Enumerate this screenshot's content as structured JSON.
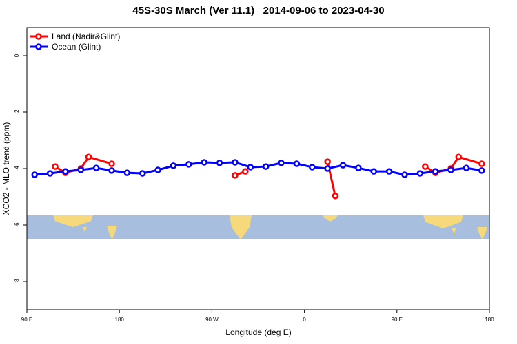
{
  "chart_data": {
    "type": "line",
    "title": "45S-30S March (Ver 11.1)   2014-09-06 to 2023-04-30",
    "x_label": "Longitude (deg E)",
    "y_label": "XCO2 - MLO trend (ppm)",
    "xlim": [
      90,
      540
    ],
    "ylim": [
      -9,
      1
    ],
    "xticks": [
      {
        "value": 90,
        "label": "90 E"
      },
      180,
      {
        "value": 270,
        "label": "90 W"
      },
      {
        "value": 360,
        "label": "0"
      },
      {
        "value": 450,
        "label": "90 E"
      },
      {
        "value": 540,
        "label": "180"
      }
    ],
    "yticks": [
      -8,
      -6,
      -4,
      -2,
      0
    ],
    "legend": "top-left",
    "series": [
      {
        "name": "Land (Nadir&Glint)",
        "color": "#ff0000",
        "x": [
          117.5,
          127.5,
          142.5,
          150,
          172.5,
          null,
          292.5,
          302.5,
          null,
          382.5,
          390,
          null,
          477.5,
          487.5,
          502.5,
          510,
          532.5
        ],
        "values": [
          -3.93,
          -4.15,
          -4.0,
          -3.59,
          -3.83,
          null,
          -4.24,
          -4.1,
          null,
          -3.76,
          -4.97,
          null,
          -3.93,
          -4.15,
          -4.0,
          -3.59,
          -3.83
        ]
      },
      {
        "name": "Ocean (Glint)",
        "color": "#0000ff",
        "x": [
          97.5,
          112.5,
          127.5,
          142.5,
          157.5,
          172.5,
          187.5,
          202.5,
          217.5,
          232.5,
          247.5,
          262.5,
          277.5,
          292.5,
          307.5,
          322.5,
          337.5,
          352.5,
          367.5,
          382.5,
          397.5,
          412.5,
          427.5,
          442.5,
          457.5,
          472.5,
          487.5,
          502.5,
          517.5,
          532.5
        ],
        "values": [
          -4.22,
          -4.17,
          -4.1,
          -4.05,
          -3.98,
          -4.07,
          -4.15,
          -4.17,
          -4.05,
          -3.9,
          -3.85,
          -3.78,
          -3.8,
          -3.78,
          -3.95,
          -3.93,
          -3.8,
          -3.83,
          -3.95,
          -4.0,
          -3.88,
          -3.98,
          -4.1,
          -4.1,
          -4.22,
          -4.17,
          -4.1,
          -4.05,
          -3.98,
          -4.07
        ]
      }
    ]
  }
}
